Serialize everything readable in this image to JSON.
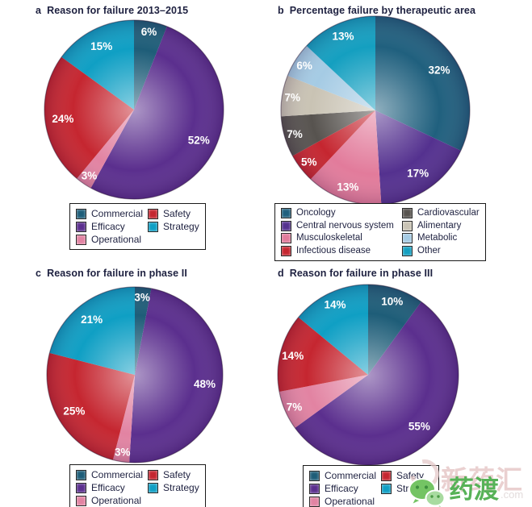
{
  "watermark": {
    "top_text": "新药汇",
    "bottom_text": "药渡",
    "suffix": ".com",
    "green_color": "#57b257",
    "light_color": "#e9cdcd",
    "icon": "wechat-icon"
  },
  "chart_data": [
    {
      "type": "pie",
      "panel": "a",
      "title": "Reason for failure 2013–2015",
      "labels": [
        "Commercial",
        "Efficacy",
        "Operational",
        "Safety",
        "Strategy"
      ],
      "values": [
        6,
        52,
        3,
        24,
        15
      ],
      "value_labels": [
        "6%",
        "52%",
        "3%",
        "24%",
        "15%"
      ],
      "colors": [
        "#1e5d78",
        "#5b2f8e",
        "#e283a2",
        "#c52630",
        "#0f9fc4"
      ],
      "start_angle_deg": 0,
      "direction": "clockwise",
      "legend_position": "bottom",
      "legend_columns": [
        [
          0,
          1,
          2
        ],
        [
          3,
          4
        ]
      ]
    },
    {
      "type": "pie",
      "panel": "b",
      "title": "Percentage failure by therapeutic area",
      "labels": [
        "Oncology",
        "Central nervous system",
        "Musculoskeletal",
        "Infectious disease",
        "Cardiovascular",
        "Alimentary",
        "Metabolic",
        "Other"
      ],
      "values": [
        32,
        17,
        13,
        5,
        7,
        7,
        6,
        13
      ],
      "value_labels": [
        "32%",
        "17%",
        "13%",
        "5%",
        "7%",
        "7%",
        "6%",
        "13%"
      ],
      "colors": [
        "#20607e",
        "#54318f",
        "#e27b9b",
        "#c52630",
        "#57534f",
        "#c9c3b4",
        "#a5cbe4",
        "#149fc0"
      ],
      "start_angle_deg": 0,
      "direction": "clockwise",
      "legend_position": "bottom",
      "legend_columns": [
        [
          0,
          1,
          2,
          3
        ],
        [
          4,
          5,
          6,
          7
        ]
      ]
    },
    {
      "type": "pie",
      "panel": "c",
      "title": "Reason for failure in phase II",
      "labels": [
        "Commercial",
        "Efficacy",
        "Operational",
        "Safety",
        "Strategy"
      ],
      "values": [
        3,
        48,
        3,
        25,
        21
      ],
      "value_labels": [
        "3%",
        "48%",
        "3%",
        "25%",
        "21%"
      ],
      "colors": [
        "#1e5d78",
        "#5b2f8e",
        "#e283a2",
        "#c52630",
        "#0f9fc4"
      ],
      "start_angle_deg": 0,
      "direction": "clockwise",
      "legend_position": "bottom",
      "legend_columns": [
        [
          0,
          1,
          2
        ],
        [
          3,
          4
        ]
      ]
    },
    {
      "type": "pie",
      "panel": "d",
      "title": "Reason for failure in phase III",
      "labels": [
        "Commercial",
        "Efficacy",
        "Operational",
        "Safety",
        "Strategy"
      ],
      "values": [
        10,
        55,
        7,
        14,
        14
      ],
      "value_labels": [
        "10%",
        "55%",
        "7%",
        "14%",
        "14%"
      ],
      "colors": [
        "#1e5d78",
        "#5b2f8e",
        "#e283a2",
        "#c52630",
        "#0f9fc4"
      ],
      "start_angle_deg": 0,
      "direction": "clockwise",
      "legend_position": "bottom",
      "legend_columns": [
        [
          0,
          1,
          2
        ],
        [
          3,
          4
        ]
      ]
    }
  ]
}
